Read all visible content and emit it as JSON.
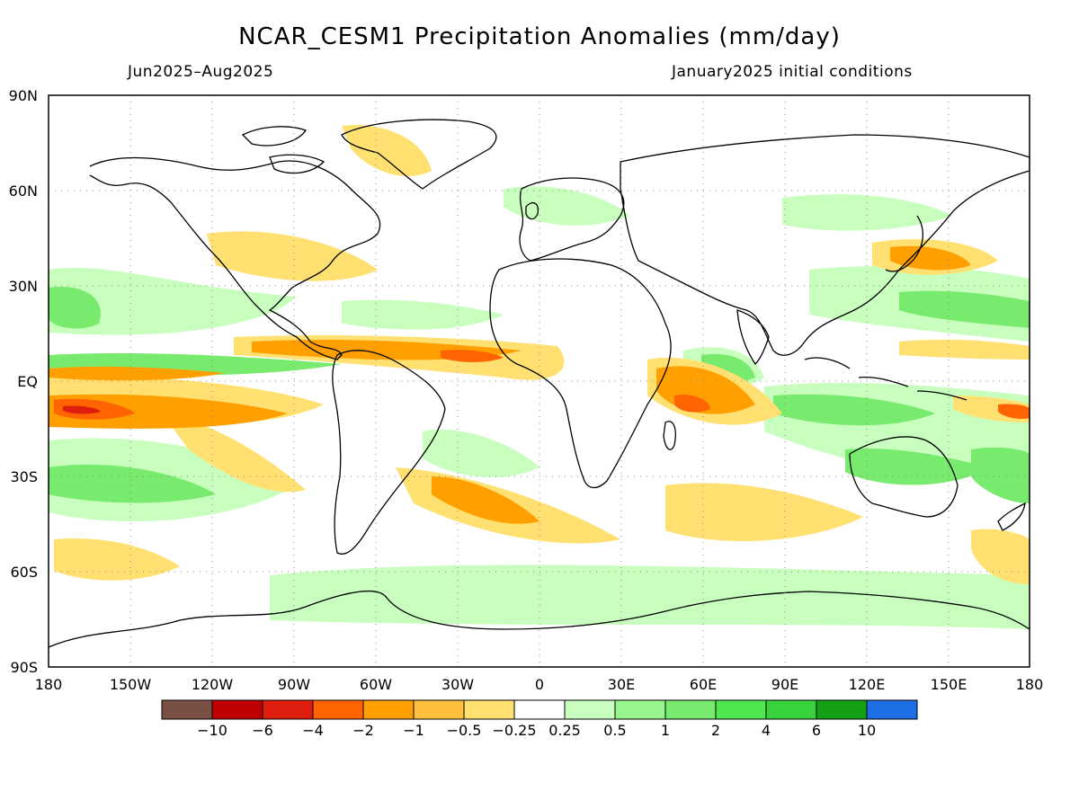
{
  "title": "NCAR_CESM1 Precipitation Anomalies (mm/day)",
  "period": "Jun2025–Aug2025",
  "initial_conditions": "January2025 initial conditions",
  "map": {
    "lon_ticks": [
      "180",
      "150W",
      "120W",
      "90W",
      "60W",
      "30W",
      "0",
      "30E",
      "60E",
      "90E",
      "120E",
      "150E",
      "180"
    ],
    "lat_ticks": [
      "90N",
      "60N",
      "30N",
      "EQ",
      "30S",
      "60S",
      "90S"
    ]
  },
  "colorbar": {
    "colors": [
      "#7a5045",
      "#c00000",
      "#e01e10",
      "#ff6400",
      "#ffa000",
      "#ffc03c",
      "#ffe070",
      "#ffffff",
      "#c8ffbe",
      "#96f58c",
      "#78eb6e",
      "#50e650",
      "#37d23c",
      "#14a014",
      "#1e6ee6"
    ],
    "labels": [
      "−10",
      "−6",
      "−4",
      "−2",
      "−1",
      "−0.5",
      "−0.25",
      "0.25",
      "0.5",
      "1",
      "2",
      "4",
      "6",
      "10"
    ]
  },
  "colors": {
    "dry_strong": "#e01e10",
    "dry": "#ff6400",
    "dry_mod": "#ffa000",
    "dry_light": "#ffc03c",
    "dry_weak": "#ffe070",
    "wet_weak": "#c8ffbe",
    "wet_light": "#96f58c",
    "wet_mod": "#78eb6e",
    "wet": "#50e650"
  }
}
